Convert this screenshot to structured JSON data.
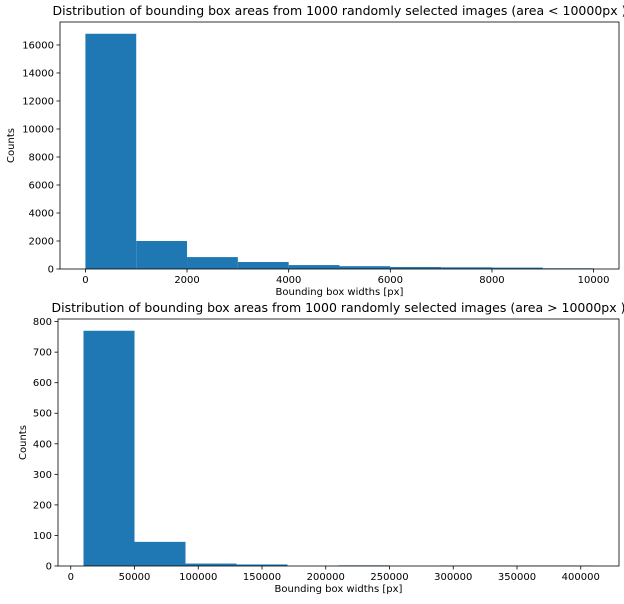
{
  "chart_data": [
    {
      "type": "histogram",
      "title": "Distribution of bounding box areas from 1000 randomly selected images (area < 10000px )",
      "x_label": "Bounding box widths [px]",
      "y_label": "Counts",
      "bins": [
        0,
        1000,
        2000,
        3000,
        4000,
        5000,
        6000,
        7000,
        8000,
        9000,
        10000
      ],
      "values": [
        16800,
        2000,
        850,
        500,
        280,
        200,
        140,
        120,
        100,
        50
      ],
      "color": "#1f77b4",
      "xlim": [
        -500,
        10500
      ],
      "xticks": [
        0,
        2000,
        4000,
        6000,
        8000,
        10000
      ],
      "ylim": [
        0,
        17640
      ],
      "yticks": [
        0,
        2000,
        4000,
        6000,
        8000,
        10000,
        12000,
        14000,
        16000
      ]
    },
    {
      "type": "histogram",
      "title": "Distribution of bounding box areas from 1000 randomly selected images (area > 10000px )",
      "x_label": "Bounding box widths [px]",
      "y_label": "Counts",
      "bins": [
        10000,
        50000,
        90000,
        130000,
        170000,
        210000,
        250000,
        290000,
        330000,
        370000,
        410000
      ],
      "values": [
        770,
        79,
        8,
        5,
        0,
        2,
        0,
        1,
        1,
        1
      ],
      "color": "#1f77b4",
      "xlim": [
        -10000,
        430000
      ],
      "xticks": [
        0,
        50000,
        100000,
        150000,
        200000,
        250000,
        300000,
        350000,
        400000
      ],
      "ylim": [
        0,
        808.5
      ],
      "yticks": [
        0,
        100,
        200,
        300,
        400,
        500,
        600,
        700,
        800
      ]
    }
  ]
}
